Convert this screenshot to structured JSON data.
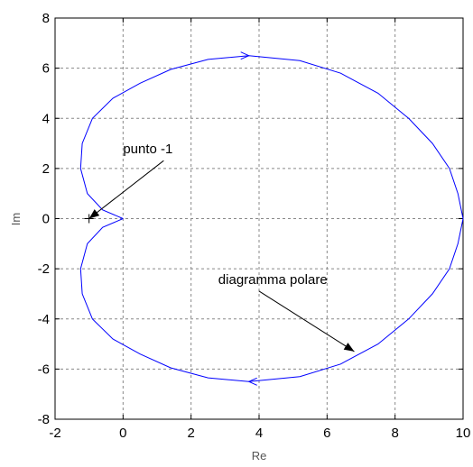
{
  "chart_data": {
    "type": "line",
    "title": "",
    "xlabel": "Re",
    "ylabel": "Im",
    "xlim": [
      -2,
      10
    ],
    "ylim": [
      -8,
      8
    ],
    "xticks": [
      -2,
      0,
      2,
      4,
      6,
      8,
      10
    ],
    "yticks": [
      -8,
      -6,
      -4,
      -2,
      0,
      2,
      4,
      6,
      8
    ],
    "xtick_labels": [
      "-2",
      "0",
      "2",
      "4",
      "6",
      "8",
      "10"
    ],
    "ytick_labels": [
      "-8",
      "-6",
      "-4",
      "-2",
      "0",
      "2",
      "4",
      "6",
      "8"
    ],
    "grid": true,
    "series": [
      {
        "color": "#0000ff",
        "x": [
          0.0,
          -0.6,
          -1.05,
          -1.25,
          -1.2,
          -0.9,
          -0.3,
          0.5,
          1.4,
          2.5,
          3.7,
          5.2,
          6.4,
          7.5,
          8.4,
          9.1,
          9.6,
          9.85,
          10.0,
          9.85,
          9.6,
          9.1,
          8.4,
          7.5,
          6.4,
          5.2,
          3.7,
          2.5,
          1.4,
          0.5,
          -0.3,
          -0.9,
          -1.2,
          -1.25,
          -1.05,
          -0.6,
          0.0
        ],
        "y": [
          0.0,
          0.35,
          1.0,
          2.0,
          3.0,
          4.0,
          4.8,
          5.4,
          5.95,
          6.35,
          6.5,
          6.3,
          5.8,
          5.0,
          4.0,
          3.0,
          2.0,
          1.0,
          0.0,
          -1.0,
          -2.0,
          -3.0,
          -4.0,
          -5.0,
          -5.8,
          -6.3,
          -6.5,
          -6.35,
          -5.95,
          -5.4,
          -4.8,
          -4.0,
          -3.0,
          -2.0,
          -1.0,
          -0.35,
          0.0
        ]
      }
    ],
    "points": [
      {
        "x": -1,
        "y": 0,
        "marker": "+"
      }
    ],
    "annotations": [
      {
        "text": "punto -1",
        "text_x": 0.0,
        "text_y": 2.6,
        "arrow_x": -1.0,
        "arrow_y": 0.0
      },
      {
        "text": "diagramma polare",
        "text_x": 2.8,
        "text_y": -2.6,
        "arrow_x": 6.8,
        "arrow_y": -5.3
      }
    ],
    "direction_arrows": [
      {
        "x": 3.7,
        "y": 6.5,
        "dir": "right"
      },
      {
        "x": 3.7,
        "y": -6.5,
        "dir": "left"
      }
    ]
  }
}
